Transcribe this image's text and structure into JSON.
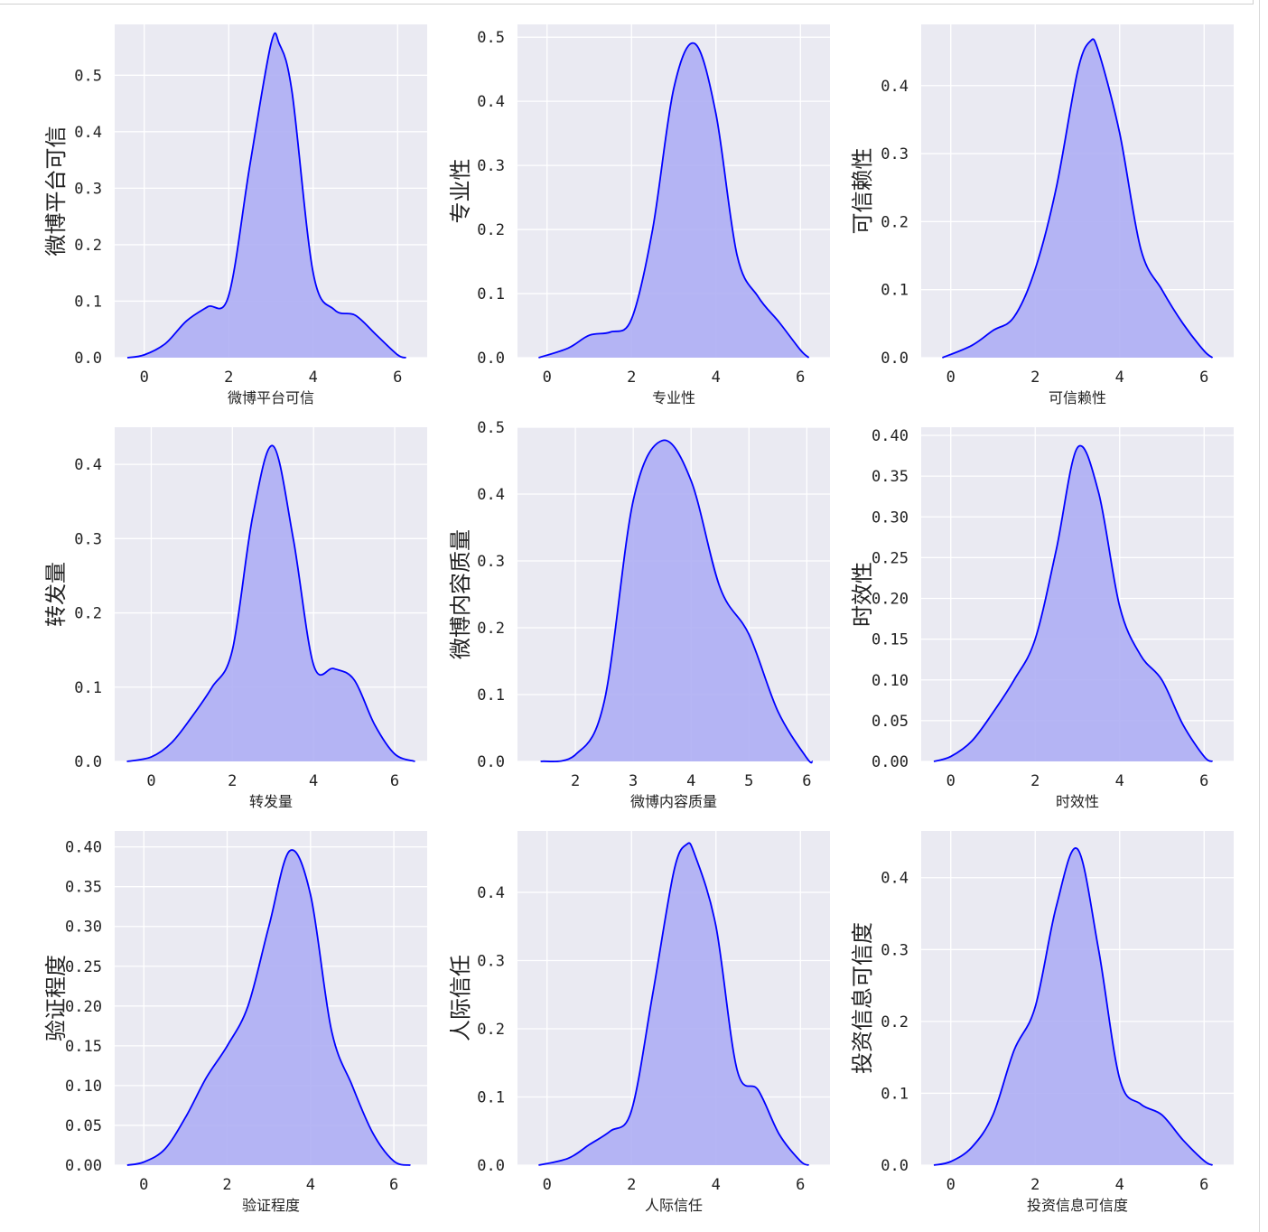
{
  "style": {
    "panel_bg": "#eaeaf2",
    "grid": "#ffffff",
    "line_color": "#0000ff",
    "fill_color": "#aeaef4"
  },
  "chart_data": [
    {
      "type": "area",
      "xlabel": "微博平台可信",
      "ylabel": "微博平台可信",
      "xlim": [
        -0.7,
        6.7
      ],
      "ylim": [
        0,
        0.59
      ],
      "xticks": [
        "0",
        "2",
        "4",
        "6"
      ],
      "yticks": [
        "0.0",
        "0.1",
        "0.2",
        "0.3",
        "0.4",
        "0.5"
      ],
      "x": [
        -0.4,
        0,
        0.5,
        1,
        1.5,
        2,
        2.5,
        3,
        3.2,
        3.5,
        4,
        4.5,
        5,
        5.5,
        6,
        6.2
      ],
      "y": [
        0,
        0.005,
        0.025,
        0.065,
        0.09,
        0.11,
        0.34,
        0.555,
        0.555,
        0.47,
        0.15,
        0.085,
        0.075,
        0.04,
        0.005,
        0
      ]
    },
    {
      "type": "area",
      "xlabel": "专业性",
      "ylabel": "专业性",
      "xlim": [
        -0.7,
        6.7
      ],
      "ylim": [
        0,
        0.52
      ],
      "xticks": [
        "0",
        "2",
        "4",
        "6"
      ],
      "yticks": [
        "0.0",
        "0.1",
        "0.2",
        "0.3",
        "0.4",
        "0.5"
      ],
      "x": [
        -0.2,
        0.5,
        1,
        1.5,
        2,
        2.5,
        3,
        3.5,
        4,
        4.5,
        5,
        5.5,
        6,
        6.2
      ],
      "y": [
        0,
        0.015,
        0.035,
        0.04,
        0.06,
        0.2,
        0.42,
        0.49,
        0.38,
        0.16,
        0.095,
        0.055,
        0.012,
        0
      ]
    },
    {
      "type": "area",
      "xlabel": "可信赖性",
      "ylabel": "可信赖性",
      "xlim": [
        -0.7,
        6.7
      ],
      "ylim": [
        0,
        0.49
      ],
      "xticks": [
        "0",
        "2",
        "4",
        "6"
      ],
      "yticks": [
        "0.0",
        "0.1",
        "0.2",
        "0.3",
        "0.4"
      ],
      "x": [
        -0.2,
        0.5,
        1,
        1.5,
        2,
        2.5,
        3,
        3.3,
        3.5,
        4,
        4.5,
        5,
        5.5,
        6,
        6.2
      ],
      "y": [
        0,
        0.018,
        0.04,
        0.06,
        0.13,
        0.25,
        0.42,
        0.465,
        0.45,
        0.33,
        0.16,
        0.1,
        0.05,
        0.01,
        0
      ]
    },
    {
      "type": "area",
      "xlabel": "转发量",
      "ylabel": "转发量",
      "xlim": [
        -0.9,
        6.8
      ],
      "ylim": [
        0,
        0.45
      ],
      "xticks": [
        "0",
        "2",
        "4",
        "6"
      ],
      "yticks": [
        "0.0",
        "0.1",
        "0.2",
        "0.3",
        "0.4"
      ],
      "x": [
        -0.6,
        0,
        0.5,
        1,
        1.5,
        2,
        2.5,
        3,
        3.5,
        4,
        4.5,
        5,
        5.5,
        6,
        6.5
      ],
      "y": [
        0,
        0.006,
        0.025,
        0.06,
        0.1,
        0.15,
        0.33,
        0.425,
        0.3,
        0.13,
        0.125,
        0.11,
        0.05,
        0.01,
        0
      ]
    },
    {
      "type": "area",
      "xlabel": "微博内容质量",
      "ylabel": "微博内容质量",
      "xlim": [
        1.0,
        6.4
      ],
      "ylim": [
        0,
        0.5
      ],
      "xticks": [
        "2",
        "3",
        "4",
        "5",
        "6"
      ],
      "yticks": [
        "0.0",
        "0.1",
        "0.2",
        "0.3",
        "0.4",
        "0.5"
      ],
      "x": [
        1.4,
        2,
        2.5,
        3,
        3.5,
        4,
        4.5,
        5,
        5.5,
        6,
        6.1
      ],
      "y": [
        0,
        0.01,
        0.09,
        0.39,
        0.48,
        0.42,
        0.26,
        0.19,
        0.075,
        0.005,
        0
      ]
    },
    {
      "type": "area",
      "xlabel": "时效性",
      "ylabel": "时效性",
      "xlim": [
        -0.7,
        6.7
      ],
      "ylim": [
        0,
        0.41
      ],
      "xticks": [
        "0",
        "2",
        "4",
        "6"
      ],
      "yticks": [
        "0.00",
        "0.05",
        "0.10",
        "0.15",
        "0.20",
        "0.25",
        "0.30",
        "0.35",
        "0.40"
      ],
      "x": [
        -0.4,
        0,
        0.5,
        1,
        1.5,
        2,
        2.5,
        3,
        3.5,
        4,
        4.5,
        5,
        5.5,
        6,
        6.2
      ],
      "y": [
        0,
        0.006,
        0.025,
        0.06,
        0.1,
        0.15,
        0.26,
        0.385,
        0.33,
        0.19,
        0.13,
        0.1,
        0.045,
        0.006,
        0
      ]
    },
    {
      "type": "area",
      "xlabel": "验证程度",
      "ylabel": "验证程度",
      "xlim": [
        -0.7,
        6.8
      ],
      "ylim": [
        0,
        0.42
      ],
      "xticks": [
        "0",
        "2",
        "4",
        "6"
      ],
      "yticks": [
        "0.00",
        "0.05",
        "0.10",
        "0.15",
        "0.20",
        "0.25",
        "0.30",
        "0.35",
        "0.40"
      ],
      "x": [
        -0.4,
        0,
        0.5,
        1,
        1.5,
        2,
        2.5,
        3,
        3.5,
        4,
        4.5,
        5,
        5.5,
        6,
        6.4
      ],
      "y": [
        0,
        0.004,
        0.02,
        0.06,
        0.11,
        0.15,
        0.2,
        0.3,
        0.395,
        0.34,
        0.17,
        0.1,
        0.04,
        0.005,
        0
      ]
    },
    {
      "type": "area",
      "xlabel": "人际信任",
      "ylabel": "人际信任",
      "xlim": [
        -0.7,
        6.7
      ],
      "ylim": [
        0,
        0.49
      ],
      "xticks": [
        "0",
        "2",
        "4",
        "6"
      ],
      "yticks": [
        "0.0",
        "0.1",
        "0.2",
        "0.3",
        "0.4"
      ],
      "x": [
        -0.2,
        0.5,
        1,
        1.5,
        2,
        2.5,
        3,
        3.3,
        3.5,
        4,
        4.5,
        5,
        5.5,
        6,
        6.2
      ],
      "y": [
        0,
        0.01,
        0.03,
        0.05,
        0.08,
        0.25,
        0.43,
        0.47,
        0.455,
        0.35,
        0.14,
        0.11,
        0.045,
        0.006,
        0
      ]
    },
    {
      "type": "area",
      "xlabel": "投资信息可信度",
      "ylabel": "投资信息可信度",
      "xlim": [
        -0.7,
        6.7
      ],
      "ylim": [
        0,
        0.465
      ],
      "xticks": [
        "0",
        "2",
        "4",
        "6"
      ],
      "yticks": [
        "0.0",
        "0.1",
        "0.2",
        "0.3",
        "0.4"
      ],
      "x": [
        -0.4,
        0,
        0.5,
        1,
        1.5,
        2,
        2.5,
        3,
        3.5,
        4,
        4.5,
        5,
        5.5,
        6,
        6.2
      ],
      "y": [
        0,
        0.005,
        0.025,
        0.07,
        0.16,
        0.22,
        0.36,
        0.44,
        0.3,
        0.12,
        0.085,
        0.07,
        0.035,
        0.006,
        0
      ]
    }
  ]
}
